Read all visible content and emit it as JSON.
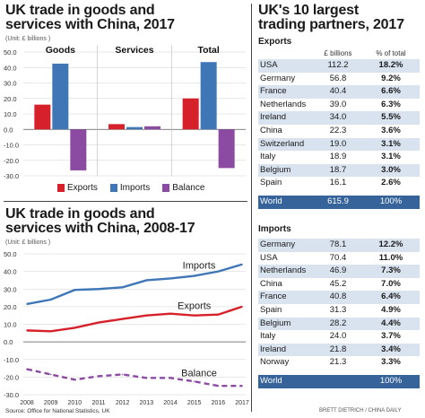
{
  "left_top": {
    "title_line1": "UK trade in goods and",
    "title_line2": "services with China, 2017",
    "unit": "(Unit: £ billions )"
  },
  "left_bottom": {
    "title_line1": "UK trade in goods and",
    "title_line2": "services with China, 2008-17",
    "unit": "(Unit: £ billions )"
  },
  "legend": {
    "exports": "Exports",
    "imports": "Imports",
    "balance": "Balance"
  },
  "colors": {
    "exports": "#d6202a",
    "imports": "#3f76b5",
    "balance": "#8b4ba3",
    "table_alt": "#d9e3ef",
    "table_total": "#36649a"
  },
  "chart_data": [
    {
      "type": "bar",
      "title": "UK trade in goods and services with China, 2017",
      "categories": [
        "Goods",
        "Services",
        "Total"
      ],
      "series": [
        {
          "name": "Exports",
          "values": [
            16.0,
            3.4,
            20.0
          ]
        },
        {
          "name": "Imports",
          "values": [
            42.5,
            1.5,
            43.5
          ]
        },
        {
          "name": "Balance",
          "values": [
            -26.5,
            2.0,
            -25.0
          ]
        }
      ],
      "ylim": [
        -30,
        50
      ],
      "yticks": [
        "-30.0",
        "-20.0",
        "-10.0",
        "0.0",
        "10.0",
        "20.0",
        "30.0",
        "40.0",
        "50.0"
      ],
      "ytick_values": [
        -30,
        -20,
        -10,
        0,
        10,
        20,
        30,
        40,
        50
      ]
    },
    {
      "type": "line",
      "title": "UK trade in goods and services with China, 2008-17",
      "x": [
        "2008",
        "2009",
        "2010",
        "2011",
        "2012",
        "2013",
        "2014",
        "2015",
        "2016",
        "2017"
      ],
      "series": [
        {
          "name": "Imports",
          "values": [
            21.5,
            24.0,
            29.5,
            30.0,
            31.0,
            35.0,
            36.0,
            37.5,
            40.0,
            44.0
          ]
        },
        {
          "name": "Exports",
          "values": [
            6.5,
            6.0,
            8.0,
            11.0,
            13.0,
            15.0,
            16.0,
            15.0,
            15.5,
            20.0
          ]
        },
        {
          "name": "Balance",
          "values": [
            -15.5,
            -18.5,
            -21.5,
            -19.5,
            -18.5,
            -20.5,
            -20.5,
            -22.5,
            -25.0,
            -25.0
          ]
        }
      ],
      "ylim": [
        -30,
        50
      ],
      "yticks": [
        "-30.0",
        "-20.0",
        "-10.0",
        "0.0",
        "10.0",
        "20.0",
        "30.0",
        "40.0",
        "50.0"
      ],
      "ytick_values": [
        -30,
        -20,
        -10,
        0,
        10,
        20,
        30,
        40,
        50
      ]
    },
    {
      "type": "table",
      "title": "UK's 10 largest trading partners, 2017",
      "sections": [
        {
          "name": "Exports",
          "columns": [
            "",
            "£ billions",
            "% of total"
          ],
          "rows": [
            [
              "USA",
              "112.2",
              "18.2%"
            ],
            [
              "Germany",
              "56.8",
              "9.2%"
            ],
            [
              "France",
              "40.4",
              "6.6%"
            ],
            [
              "Netherlands",
              "39.0",
              "6.3%"
            ],
            [
              "Ireland",
              "34.0",
              "5.5%"
            ],
            [
              "China",
              "22.3",
              "3.6%"
            ],
            [
              "Switzerland",
              "19.0",
              "3.1%"
            ],
            [
              "Italy",
              "18.9",
              "3.1%"
            ],
            [
              "Belgium",
              "18.7",
              "3.0%"
            ],
            [
              "Spain",
              "16.1",
              "2.6%"
            ]
          ],
          "total": [
            "World",
            "615.9",
            "100%"
          ]
        },
        {
          "name": "Imports",
          "rows": [
            [
              "Germany",
              "78.1",
              "12.2%"
            ],
            [
              "USA",
              "70.4",
              "11.0%"
            ],
            [
              "Netherlands",
              "46.9",
              "7.3%"
            ],
            [
              "China",
              "45.2",
              "7.0%"
            ],
            [
              "France",
              "40.8",
              "6.4%"
            ],
            [
              "Spain",
              "31.3",
              "4.9%"
            ],
            [
              "Belgium",
              "28.2",
              "4.4%"
            ],
            [
              "Italy",
              "24.0",
              "3.7%"
            ],
            [
              "Ireland",
              "21.8",
              "3.4%"
            ],
            [
              "Norway",
              "21.3",
              "3.3%"
            ]
          ],
          "total": [
            "World",
            "",
            "100%"
          ]
        }
      ]
    }
  ],
  "right": {
    "title_line1": "UK's 10 largest",
    "title_line2": "trading partners, 2017"
  },
  "footer": {
    "source": "Source: Office for National Statistics, UK",
    "credit": "BRETT DIETRICH / CHINA DAILY"
  }
}
